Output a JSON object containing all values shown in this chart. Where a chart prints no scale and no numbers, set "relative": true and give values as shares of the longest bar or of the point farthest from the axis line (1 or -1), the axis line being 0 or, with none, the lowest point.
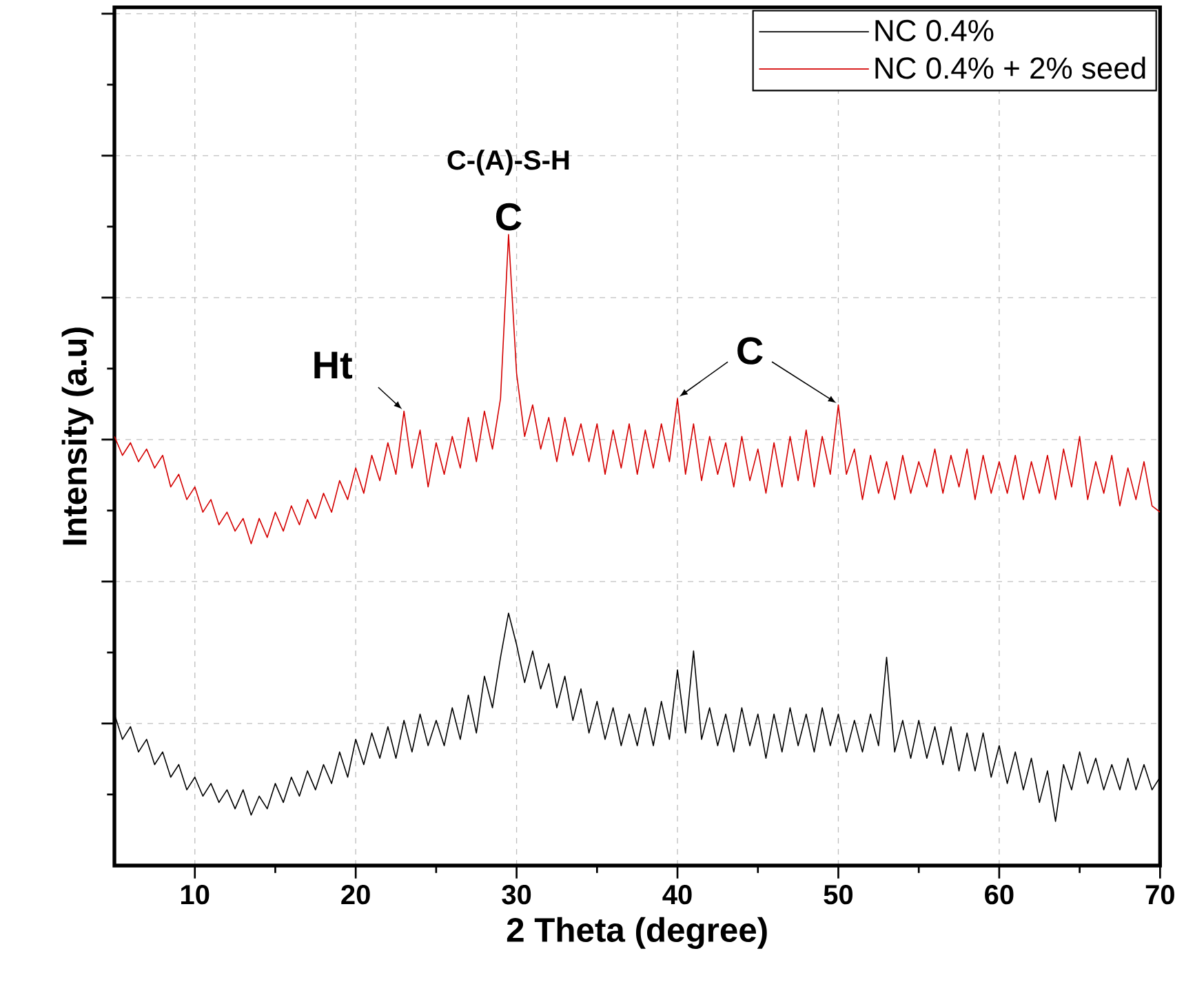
{
  "chart_data": {
    "type": "line",
    "relative": true,
    "xlabel": "2 Theta (degree)",
    "ylabel": "Intensity (a.u)",
    "xlim": [
      5,
      70
    ],
    "xticks": [
      10,
      20,
      30,
      40,
      50,
      60,
      70
    ],
    "grid": true,
    "legend": "top right",
    "x": [
      5,
      5.5,
      6,
      6.5,
      7,
      7.5,
      8,
      8.5,
      9,
      9.5,
      10,
      10.5,
      11,
      11.5,
      12,
      12.5,
      13,
      13.5,
      14,
      14.5,
      15,
      15.5,
      16,
      16.5,
      17,
      17.5,
      18,
      18.5,
      19,
      19.5,
      20,
      20.5,
      21,
      21.5,
      22,
      22.5,
      23,
      23.5,
      24,
      24.5,
      25,
      25.5,
      26,
      26.5,
      27,
      27.5,
      28,
      28.5,
      29,
      29.5,
      30,
      30.5,
      31,
      31.5,
      32,
      32.5,
      33,
      33.5,
      34,
      34.5,
      35,
      35.5,
      36,
      36.5,
      37,
      37.5,
      38,
      38.5,
      39,
      39.5,
      40,
      40.5,
      41,
      41.5,
      42,
      42.5,
      43,
      43.5,
      44,
      44.5,
      45,
      45.5,
      46,
      46.5,
      47,
      47.5,
      48,
      48.5,
      49,
      49.5,
      50,
      50.5,
      51,
      51.5,
      52,
      52.5,
      53,
      53.5,
      54,
      54.5,
      55,
      55.5,
      56,
      56.5,
      57,
      57.5,
      58,
      58.5,
      59,
      59.5,
      60,
      60.5,
      61,
      61.5,
      62,
      62.5,
      63,
      63.5,
      64,
      64.5,
      65,
      65.5,
      66,
      66.5,
      67,
      67.5,
      68,
      68.5,
      69,
      69.5,
      70
    ],
    "series": [
      {
        "name": "NC 0.4%",
        "color": "#000000",
        "values": [
          0.24,
          0.2,
          0.22,
          0.18,
          0.2,
          0.16,
          0.18,
          0.14,
          0.16,
          0.12,
          0.14,
          0.11,
          0.13,
          0.1,
          0.12,
          0.09,
          0.12,
          0.08,
          0.11,
          0.09,
          0.13,
          0.1,
          0.14,
          0.11,
          0.15,
          0.12,
          0.16,
          0.13,
          0.18,
          0.14,
          0.2,
          0.16,
          0.21,
          0.17,
          0.22,
          0.17,
          0.23,
          0.18,
          0.24,
          0.19,
          0.23,
          0.19,
          0.25,
          0.2,
          0.27,
          0.21,
          0.3,
          0.25,
          0.33,
          0.4,
          0.35,
          0.29,
          0.34,
          0.28,
          0.32,
          0.25,
          0.3,
          0.23,
          0.28,
          0.21,
          0.26,
          0.2,
          0.25,
          0.19,
          0.24,
          0.19,
          0.25,
          0.19,
          0.26,
          0.2,
          0.31,
          0.21,
          0.34,
          0.2,
          0.25,
          0.19,
          0.24,
          0.18,
          0.25,
          0.19,
          0.24,
          0.17,
          0.24,
          0.18,
          0.25,
          0.19,
          0.24,
          0.18,
          0.25,
          0.19,
          0.24,
          0.18,
          0.23,
          0.18,
          0.24,
          0.19,
          0.33,
          0.18,
          0.23,
          0.17,
          0.23,
          0.17,
          0.22,
          0.16,
          0.22,
          0.15,
          0.21,
          0.15,
          0.21,
          0.14,
          0.19,
          0.13,
          0.18,
          0.12,
          0.17,
          0.1,
          0.15,
          0.07,
          0.16,
          0.12,
          0.18,
          0.13,
          0.17,
          0.12,
          0.16,
          0.12,
          0.17,
          0.12,
          0.16,
          0.12,
          0.14
        ]
      },
      {
        "name": "NC 0.4% + 2% seed",
        "color": "#d40000",
        "values": [
          0.68,
          0.65,
          0.67,
          0.64,
          0.66,
          0.63,
          0.65,
          0.6,
          0.62,
          0.58,
          0.6,
          0.56,
          0.58,
          0.54,
          0.56,
          0.53,
          0.55,
          0.51,
          0.55,
          0.52,
          0.56,
          0.53,
          0.57,
          0.54,
          0.58,
          0.55,
          0.59,
          0.56,
          0.61,
          0.58,
          0.63,
          0.59,
          0.65,
          0.61,
          0.67,
          0.62,
          0.72,
          0.63,
          0.69,
          0.6,
          0.67,
          0.62,
          0.68,
          0.63,
          0.71,
          0.64,
          0.72,
          0.66,
          0.74,
          1,
          0.78,
          0.68,
          0.73,
          0.66,
          0.71,
          0.64,
          0.71,
          0.65,
          0.7,
          0.64,
          0.7,
          0.62,
          0.69,
          0.63,
          0.7,
          0.62,
          0.69,
          0.63,
          0.7,
          0.64,
          0.74,
          0.62,
          0.7,
          0.61,
          0.68,
          0.62,
          0.67,
          0.6,
          0.68,
          0.61,
          0.66,
          0.59,
          0.67,
          0.6,
          0.68,
          0.61,
          0.69,
          0.6,
          0.68,
          0.62,
          0.73,
          0.62,
          0.66,
          0.58,
          0.65,
          0.59,
          0.64,
          0.58,
          0.65,
          0.59,
          0.64,
          0.6,
          0.66,
          0.59,
          0.65,
          0.6,
          0.66,
          0.58,
          0.65,
          0.59,
          0.64,
          0.59,
          0.65,
          0.58,
          0.64,
          0.59,
          0.65,
          0.58,
          0.66,
          0.6,
          0.68,
          0.58,
          0.64,
          0.59,
          0.65,
          0.57,
          0.63,
          0.58,
          0.64,
          0.57,
          0.56
        ]
      }
    ],
    "annotations": [
      {
        "text": "Ht",
        "x": 23,
        "y": 0.72
      },
      {
        "text": "C",
        "x": 29.5,
        "y": 1
      },
      {
        "text": "C-(A)-S-H",
        "x": 29.5,
        "y": 1
      },
      {
        "text": "C",
        "x": 40,
        "y": 0.74
      }
    ]
  }
}
